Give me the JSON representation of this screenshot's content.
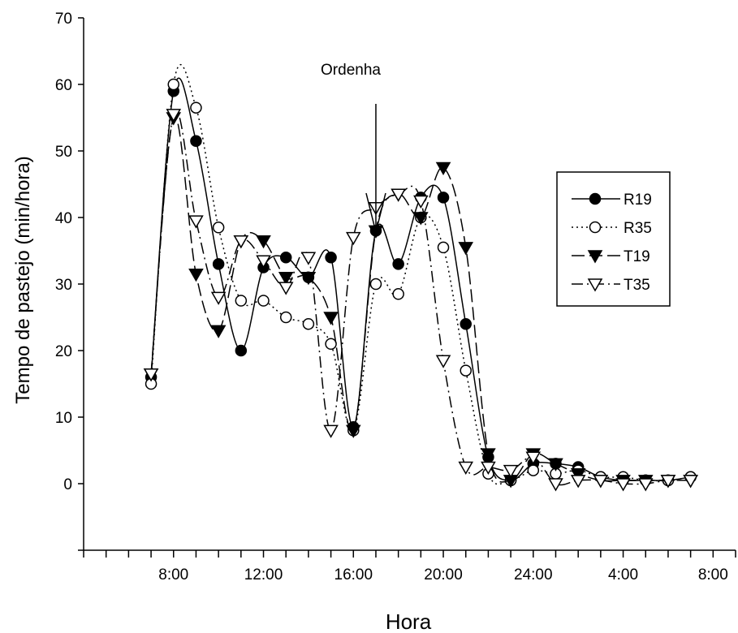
{
  "chart_data": {
    "type": "line",
    "xlabel": "Hora",
    "ylabel": "Tempo de pastejo (min/hora)",
    "annotation": "Ordenha",
    "annotation_x": 17,
    "xlim": [
      4,
      33
    ],
    "ylim": [
      -10,
      70
    ],
    "y_ticks": [
      0,
      10,
      20,
      30,
      40,
      50,
      60,
      70
    ],
    "x_ticks": [
      {
        "x": 8,
        "label": "8:00"
      },
      {
        "x": 12,
        "label": "12:00"
      },
      {
        "x": 16,
        "label": "16:00"
      },
      {
        "x": 20,
        "label": "20:00"
      },
      {
        "x": 24,
        "label": "24:00"
      },
      {
        "x": 28,
        "label": "4:00"
      },
      {
        "x": 32,
        "label": "8:00"
      }
    ],
    "minor_tick_step": 1,
    "legend_position": "right",
    "grid": false,
    "series": [
      {
        "name": "R19",
        "marker": "circle-filled",
        "line": "solid",
        "x": [
          7,
          8,
          9,
          10,
          11,
          12,
          13,
          14,
          15,
          16,
          17,
          18,
          19,
          20,
          21,
          22,
          23,
          24,
          25,
          26,
          27,
          28,
          29,
          30,
          31
        ],
        "y": [
          16,
          59,
          51.5,
          33,
          20,
          32.5,
          34,
          31,
          34,
          8.5,
          38,
          33,
          43,
          43,
          24,
          4,
          0.5,
          3,
          3,
          2.5,
          1,
          0.5,
          0.5,
          0.5,
          1
        ]
      },
      {
        "name": "R35",
        "marker": "circle-open",
        "line": "dotted",
        "x": [
          7,
          8,
          9,
          10,
          11,
          12,
          13,
          14,
          15,
          16,
          17,
          18,
          19,
          20,
          21,
          22,
          23,
          24,
          25,
          26,
          27,
          28,
          29,
          30,
          31
        ],
        "y": [
          15,
          60,
          56.5,
          38.5,
          27.5,
          27.5,
          25,
          24,
          21,
          8,
          30,
          28.5,
          40,
          35.5,
          17,
          1.5,
          0.5,
          2,
          1.5,
          2,
          1,
          1,
          0.5,
          0.5,
          1
        ]
      },
      {
        "name": "T19",
        "marker": "triangle-down-filled",
        "line": "long-dash",
        "x": [
          7,
          8,
          9,
          10,
          11,
          12,
          13,
          14,
          15,
          16,
          17,
          18,
          19,
          20,
          21,
          22,
          23,
          24,
          25,
          26,
          27,
          28,
          29,
          30,
          31
        ],
        "y": [
          16.5,
          55,
          31.5,
          23,
          36.5,
          36.5,
          31,
          31,
          25,
          8,
          38,
          43.5,
          40,
          47.5,
          35.5,
          4.5,
          0.5,
          4.5,
          3,
          1.5,
          0.5,
          0.5,
          0.5,
          0.5,
          0.5
        ]
      },
      {
        "name": "T35",
        "marker": "triangle-down-open",
        "line": "dash-dot",
        "x": [
          7,
          8,
          9,
          10,
          11,
          12,
          13,
          14,
          15,
          16,
          17,
          18,
          19,
          20,
          21,
          22,
          23,
          24,
          25,
          26,
          27,
          28,
          29,
          30,
          31
        ],
        "y": [
          16.5,
          55.5,
          39.5,
          28,
          36.5,
          33.5,
          29.5,
          34,
          8,
          37,
          41.5,
          43.5,
          42.5,
          18.5,
          2.5,
          2.5,
          2,
          4,
          0,
          0.5,
          0.5,
          0,
          0,
          0.5,
          0.5
        ]
      }
    ]
  }
}
